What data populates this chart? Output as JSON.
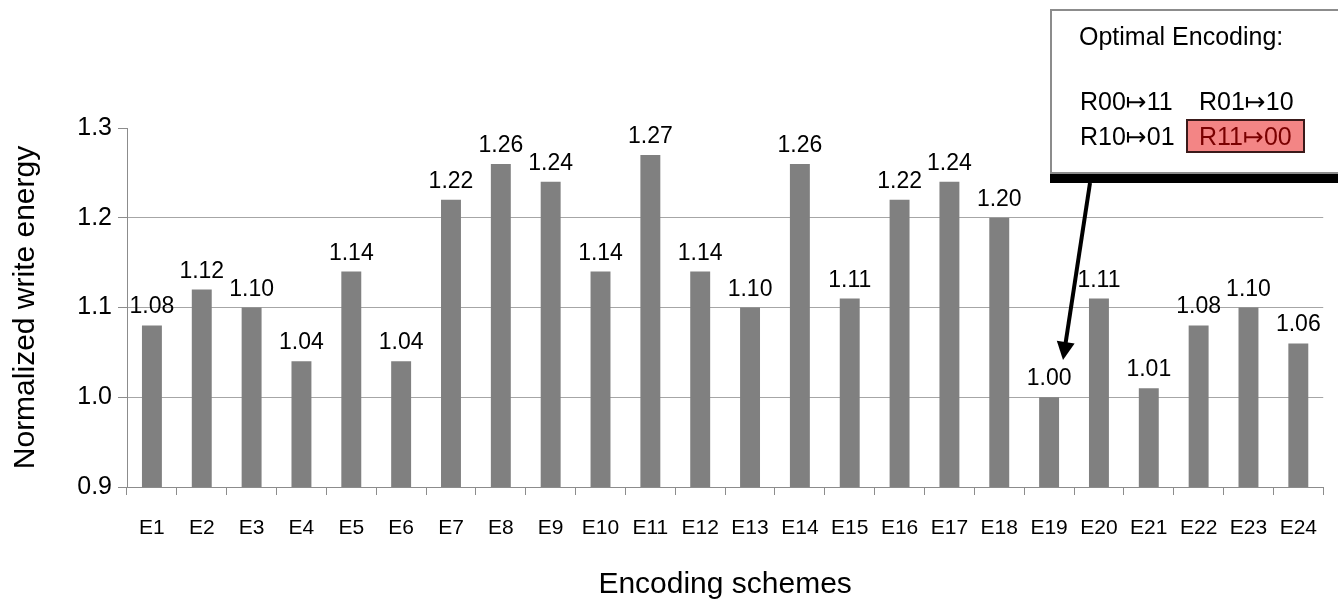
{
  "chart_data": {
    "type": "bar",
    "xlabel": "Encoding schemes",
    "ylabel": "Normalized write energy",
    "categories": [
      "E1",
      "E2",
      "E3",
      "E4",
      "E5",
      "E6",
      "E7",
      "E8",
      "E9",
      "E10",
      "E11",
      "E12",
      "E13",
      "E14",
      "E15",
      "E16",
      "E17",
      "E18",
      "E19",
      "E20",
      "E21",
      "E22",
      "E23",
      "E24"
    ],
    "values": [
      1.08,
      1.12,
      1.1,
      1.04,
      1.14,
      1.04,
      1.22,
      1.26,
      1.24,
      1.14,
      1.27,
      1.14,
      1.1,
      1.26,
      1.11,
      1.22,
      1.24,
      1.2,
      1,
      1.11,
      1.01,
      1.08,
      1.1,
      1.06
    ],
    "value_labels": [
      "1.08",
      "1.12",
      "1.10",
      "1.04",
      "1.14",
      "1.04",
      "1.22",
      "1.26",
      "1.24",
      "1.14",
      "1.27",
      "1.14",
      "1.10",
      "1.26",
      "1.11",
      "1.22",
      "1.24",
      "1.20",
      "1.00",
      "1.11",
      "1.01",
      "1.08",
      "1.10",
      "1.06"
    ],
    "color": "#808080",
    "ylim": [
      0.9,
      1.3
    ],
    "yticks": [
      0.9,
      {
        "value": 1,
        "label": "1.0"
      },
      1.1,
      1.2,
      1.3
    ],
    "grid": "y",
    "annotations": [
      "Optimal Encoding:",
      "R00↦11",
      "R01↦10",
      "R10↦01",
      "R11↦00"
    ]
  }
}
